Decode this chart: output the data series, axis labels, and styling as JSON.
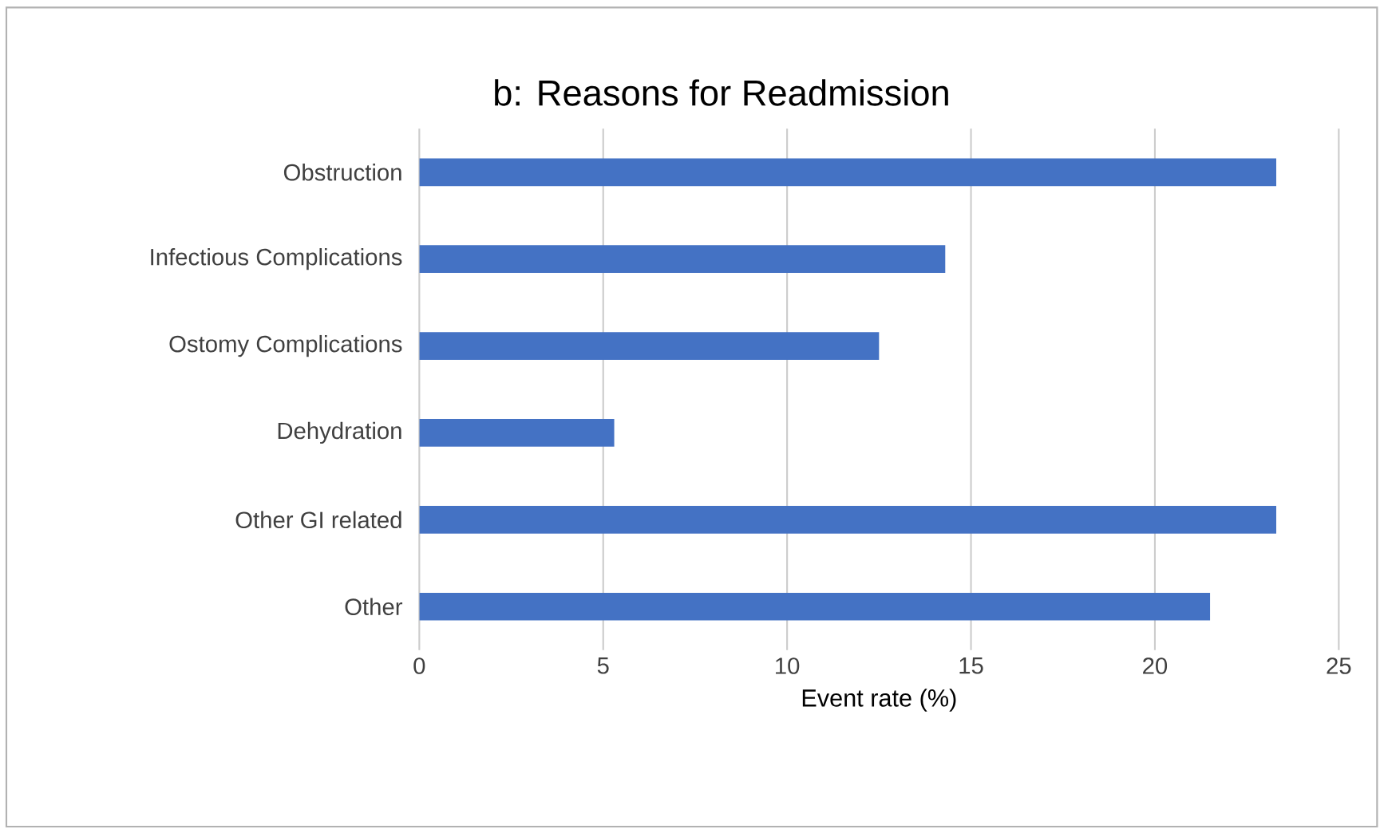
{
  "chart_data": {
    "type": "bar",
    "orientation": "horizontal",
    "title": "b: Reasons for Readmission",
    "xlabel": "Event rate (%)",
    "categories": [
      "Obstruction",
      "Infectious Complications",
      "Ostomy Complications",
      "Dehydration",
      "Other GI related",
      "Other"
    ],
    "values": [
      23.3,
      14.3,
      12.5,
      5.3,
      23.3,
      21.5
    ],
    "color": "#4472c4",
    "xlim": [
      0,
      25
    ],
    "xticks": [
      0,
      5,
      10,
      15,
      20,
      25
    ],
    "grid": "x"
  }
}
